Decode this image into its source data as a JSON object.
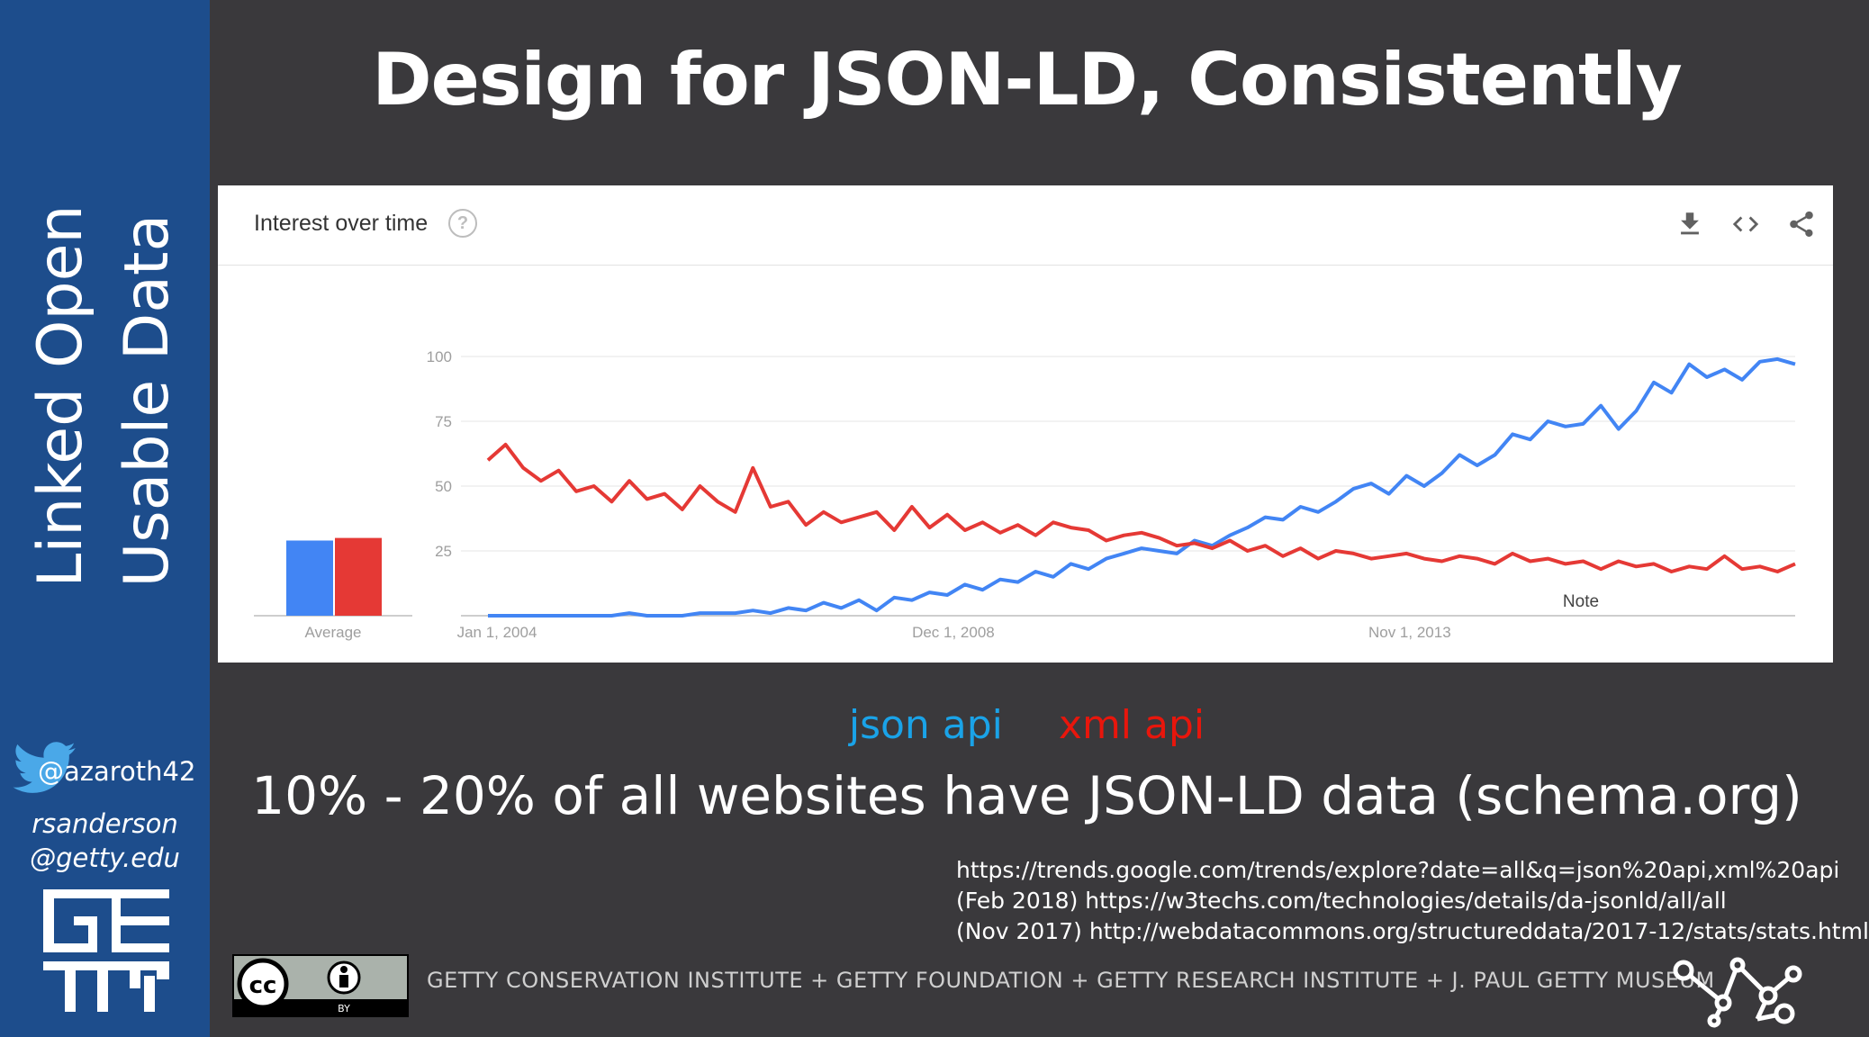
{
  "sidebar": {
    "title_line1": "Linked Open",
    "title_line2": "Usable Data",
    "twitter_handle": "@azaroth42",
    "email_line1": "rsanderson",
    "email_line2": "@getty.edu",
    "logo_icon": "getty-logo"
  },
  "slide": {
    "title": "Design for JSON-LD, Consistently",
    "legend_json": "json api",
    "legend_xml": "xml api",
    "stat": "10% - 20% of all websites have JSON-LD data (schema.org)",
    "refs": [
      "https://trends.google.com/trends/explore?date=all&q=json%20api,xml%20api",
      "(Feb 2018) https://w3techs.com/technologies/details/da-jsonld/all/all",
      "(Nov 2017) http://webdatacommons.org/structureddata/2017-12/stats/stats.html"
    ],
    "footer": "GETTY CONSERVATION INSTITUTE + GETTY FOUNDATION + GETTY RESEARCH INSTITUTE + J. PAUL GETTY MUSEUM",
    "license": "CC BY"
  },
  "panel": {
    "title": "Interest over time",
    "help": "?",
    "icons": [
      "download-icon",
      "embed-icon",
      "share-icon"
    ]
  },
  "colors": {
    "json": "#4285f4",
    "json_legend": "#1aa3e8",
    "xml": "#e53935",
    "xml_legend": "#e8160c"
  },
  "chart_data": {
    "type": "line",
    "title": "Interest over time",
    "xlabel": "",
    "ylabel": "",
    "ylim": [
      0,
      100
    ],
    "yticks": [
      25,
      50,
      75,
      100
    ],
    "x_tick_labels": [
      "Jan 1, 2004",
      "Dec 1, 2008",
      "Nov 1, 2013"
    ],
    "x_start": "2004-01",
    "x_end": "2018-02",
    "annotation": "Note",
    "average": {
      "label": "Average",
      "values": [
        29,
        30
      ]
    },
    "series": [
      {
        "name": "json api",
        "values": [
          0,
          0,
          0,
          0,
          0,
          0,
          0,
          0,
          1,
          0,
          0,
          0,
          1,
          1,
          1,
          2,
          1,
          3,
          2,
          5,
          3,
          6,
          2,
          7,
          6,
          9,
          8,
          12,
          10,
          14,
          13,
          17,
          15,
          20,
          18,
          22,
          24,
          26,
          25,
          24,
          29,
          27,
          31,
          34,
          38,
          37,
          42,
          40,
          44,
          49,
          51,
          47,
          54,
          50,
          55,
          62,
          58,
          62,
          70,
          68,
          75,
          73,
          74,
          81,
          72,
          79,
          90,
          86,
          97,
          92,
          95,
          91,
          98,
          99,
          97
        ]
      },
      {
        "name": "xml api",
        "values": [
          60,
          66,
          57,
          52,
          56,
          48,
          50,
          44,
          52,
          45,
          47,
          41,
          50,
          44,
          40,
          57,
          42,
          44,
          35,
          40,
          36,
          38,
          40,
          33,
          42,
          34,
          39,
          33,
          36,
          32,
          35,
          31,
          36,
          34,
          33,
          29,
          31,
          32,
          30,
          27,
          28,
          26,
          29,
          25,
          27,
          23,
          26,
          22,
          25,
          24,
          22,
          23,
          24,
          22,
          21,
          23,
          22,
          20,
          24,
          21,
          22,
          20,
          21,
          18,
          21,
          19,
          20,
          17,
          19,
          18,
          23,
          18,
          19,
          17,
          20
        ]
      }
    ]
  }
}
